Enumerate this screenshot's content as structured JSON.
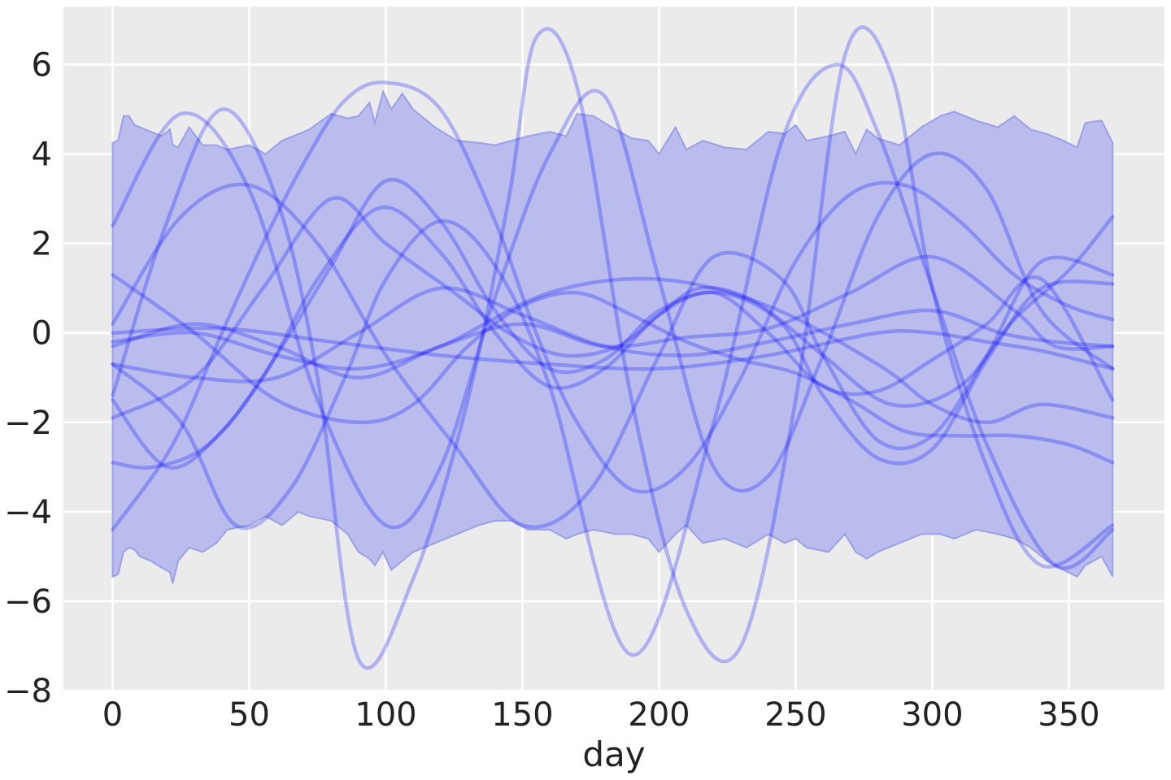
{
  "chart_data": {
    "type": "line",
    "title": "",
    "xlabel": "day",
    "ylabel": "",
    "xlim": [
      -18,
      385
    ],
    "ylim": [
      -8,
      7.3
    ],
    "xticks": [
      0,
      50,
      100,
      150,
      200,
      250,
      300,
      350
    ],
    "xtick_labels": [
      "0",
      "50",
      "100",
      "150",
      "200",
      "250",
      "300",
      "350"
    ],
    "yticks": [
      6,
      4,
      2,
      0,
      -2,
      -4,
      -6,
      -8
    ],
    "ytick_labels": [
      "6",
      "4",
      "2",
      "0",
      "−2",
      "−4",
      "−6",
      "−8"
    ],
    "grid": true,
    "background_color": "#ebebeb",
    "line_color": "#0000ff",
    "band": {
      "name": "",
      "color": "#b9bcec",
      "x": [
        0,
        2,
        4,
        6,
        8,
        10,
        14,
        18,
        21,
        22,
        24,
        28,
        33,
        38,
        42,
        50,
        56,
        62,
        68,
        72,
        80,
        86,
        90,
        94,
        96,
        99,
        102,
        106,
        110,
        118,
        126,
        134,
        140,
        146,
        152,
        160,
        166,
        170,
        176,
        184,
        190,
        196,
        200,
        206,
        210,
        216,
        224,
        232,
        240,
        246,
        250,
        254,
        262,
        268,
        272,
        276,
        280,
        288,
        296,
        303,
        308,
        316,
        324,
        330,
        336,
        342,
        348,
        353,
        356,
        362,
        366
      ],
      "upper": [
        4.25,
        4.3,
        4.85,
        4.85,
        4.65,
        4.6,
        4.5,
        4.4,
        4.55,
        4.2,
        4.15,
        4.6,
        4.2,
        4.2,
        4.1,
        4.2,
        4.0,
        4.3,
        4.45,
        4.55,
        4.9,
        4.8,
        4.85,
        5.15,
        4.7,
        5.4,
        5.0,
        5.35,
        5.0,
        4.6,
        4.3,
        4.25,
        4.2,
        4.3,
        4.4,
        4.5,
        4.4,
        4.9,
        4.85,
        4.55,
        4.35,
        4.3,
        4.0,
        4.6,
        4.1,
        4.3,
        4.15,
        4.1,
        4.5,
        4.45,
        4.65,
        4.3,
        4.4,
        4.5,
        4.0,
        4.55,
        4.35,
        4.2,
        4.6,
        4.85,
        4.95,
        4.75,
        4.6,
        4.85,
        4.55,
        4.45,
        4.3,
        4.15,
        4.7,
        4.75,
        4.25
      ],
      "lower": [
        -5.45,
        -5.4,
        -4.9,
        -4.8,
        -4.85,
        -5.0,
        -5.1,
        -5.25,
        -5.35,
        -5.6,
        -5.1,
        -4.8,
        -4.9,
        -4.7,
        -4.4,
        -4.3,
        -4.1,
        -4.3,
        -4.0,
        -4.1,
        -4.2,
        -4.5,
        -4.9,
        -5.05,
        -5.2,
        -4.9,
        -5.3,
        -5.1,
        -4.9,
        -4.7,
        -4.5,
        -4.3,
        -4.2,
        -4.2,
        -4.4,
        -4.4,
        -4.6,
        -4.5,
        -4.4,
        -4.5,
        -4.5,
        -4.6,
        -4.9,
        -4.5,
        -4.3,
        -4.7,
        -4.6,
        -4.8,
        -4.5,
        -4.7,
        -4.6,
        -4.8,
        -4.9,
        -4.5,
        -4.9,
        -5.05,
        -4.9,
        -4.7,
        -4.5,
        -4.5,
        -4.6,
        -4.4,
        -4.5,
        -4.6,
        -4.8,
        -5.1,
        -5.3,
        -5.45,
        -5.2,
        -5.0,
        -5.45
      ]
    },
    "series": [
      {
        "x": [
          0,
          25,
          50,
          75,
          100,
          120,
          140,
          160,
          180,
          200,
          220,
          240,
          260,
          280,
          300,
          320,
          340,
          366
        ],
        "values": [
          2.4,
          4.9,
          3.2,
          -1.5,
          -4.3,
          -3.0,
          0.8,
          4.0,
          5.3,
          1.2,
          -3.0,
          -3.2,
          -0.5,
          2.6,
          4.0,
          3.2,
          0.5,
          -0.8
        ]
      },
      {
        "x": [
          0,
          22,
          40,
          55,
          70,
          85,
          100,
          120,
          140,
          155,
          170,
          190,
          210,
          230,
          250,
          270,
          290,
          310,
          330,
          350,
          366
        ],
        "values": [
          -4.4,
          -2.5,
          0.0,
          2.0,
          3.8,
          5.2,
          5.6,
          5.0,
          2.5,
          0.0,
          -2.0,
          -3.5,
          -3.0,
          -1.0,
          1.6,
          3.1,
          3.3,
          2.5,
          1.3,
          0.6,
          0.3
        ]
      },
      {
        "x": [
          0,
          20,
          40,
          60,
          75,
          90,
          110,
          130,
          145,
          155,
          170,
          190,
          210,
          230,
          250,
          268,
          285,
          300,
          320,
          340,
          366
        ],
        "values": [
          -1.4,
          2.5,
          5.0,
          3.0,
          -1.0,
          -7.3,
          -5.5,
          -1.5,
          3.0,
          6.6,
          5.5,
          -1.5,
          -6.2,
          -7.0,
          -1.5,
          6.2,
          5.8,
          1.0,
          -3.0,
          -5.2,
          -4.3
        ]
      },
      {
        "x": [
          0,
          25,
          45,
          65,
          85,
          100,
          120,
          140,
          160,
          190,
          220,
          245,
          265,
          280,
          300,
          320,
          345,
          366
        ],
        "values": [
          -0.7,
          -2.0,
          -4.3,
          -3.5,
          -1.0,
          1.2,
          2.5,
          1.5,
          -1.2,
          -7.2,
          -2.0,
          4.3,
          6.0,
          4.5,
          1.0,
          -2.5,
          -5.2,
          -4.4
        ]
      },
      {
        "x": [
          0,
          25,
          50,
          75,
          100,
          125,
          150,
          175,
          200,
          220,
          245,
          260,
          280,
          300,
          320,
          340,
          366
        ],
        "values": [
          0.2,
          2.6,
          3.3,
          2.0,
          -0.5,
          -2.5,
          -4.3,
          -3.5,
          -0.5,
          1.7,
          1.2,
          -0.5,
          -2.4,
          -2.3,
          -0.5,
          1.6,
          1.3
        ]
      },
      {
        "x": [
          0,
          30,
          60,
          90,
          110,
          130,
          150,
          170,
          190,
          210,
          230,
          250,
          270,
          290,
          310,
          330,
          350,
          366
        ],
        "values": [
          1.3,
          0.0,
          -1.5,
          -2.0,
          -1.6,
          -0.3,
          0.6,
          0.9,
          0.4,
          -0.2,
          -0.6,
          -0.9,
          -1.5,
          -2.2,
          -2.3,
          -2.3,
          -2.5,
          -2.9
        ]
      },
      {
        "x": [
          0,
          20,
          40,
          60,
          80,
          100,
          120,
          140,
          160,
          180,
          200,
          222,
          245,
          260,
          280,
          300,
          320,
          340,
          366
        ],
        "values": [
          -1.5,
          -3.0,
          -2.2,
          -0.5,
          1.5,
          3.4,
          2.5,
          0.5,
          -0.8,
          -0.6,
          0.5,
          0.9,
          0.2,
          -1.4,
          -2.8,
          -2.6,
          -0.6,
          1.0,
          1.1
        ]
      },
      {
        "x": [
          0,
          15,
          35,
          55,
          75,
          98,
          120,
          140,
          160,
          180,
          200,
          220,
          240,
          260,
          280,
          300,
          320,
          340,
          366
        ],
        "values": [
          -2.9,
          -3.0,
          -2.5,
          -1.0,
          1.2,
          2.8,
          1.8,
          0.0,
          -1.2,
          -0.8,
          0.4,
          0.9,
          0.0,
          -1.2,
          -1.3,
          -0.6,
          0.2,
          1.2,
          -1.5
        ]
      },
      {
        "x": [
          0,
          30,
          60,
          90,
          120,
          150,
          180,
          210,
          240,
          270,
          300,
          330,
          345,
          366
        ],
        "values": [
          -0.3,
          0.2,
          -0.3,
          -1.0,
          -0.3,
          0.2,
          -0.3,
          -0.1,
          0.1,
          0.9,
          1.7,
          0.5,
          -0.3,
          -0.3
        ]
      },
      {
        "x": [
          0,
          30,
          60,
          90,
          120,
          150,
          180,
          210,
          240,
          270,
          300,
          325,
          345,
          366
        ],
        "values": [
          -0.7,
          -1.0,
          -1.0,
          0.0,
          1.0,
          0.4,
          -0.3,
          -0.5,
          -0.2,
          0.2,
          0.5,
          0.0,
          -0.2,
          -0.3
        ]
      },
      {
        "x": [
          0,
          30,
          55,
          80,
          100,
          125,
          145,
          165,
          185,
          200,
          215,
          235,
          260,
          285,
          310,
          330,
          350,
          366
        ],
        "values": [
          -1.9,
          -1.0,
          1.0,
          3.0,
          2.0,
          0.9,
          0.0,
          -0.5,
          -0.3,
          0.4,
          1.0,
          0.7,
          -0.5,
          -1.6,
          -1.2,
          0.3,
          1.4,
          2.6
        ]
      },
      {
        "x": [
          0,
          30,
          60,
          90,
          120,
          160,
          200,
          240,
          280,
          300,
          320,
          340,
          366
        ],
        "values": [
          -0.2,
          0.0,
          -0.5,
          -0.8,
          -0.3,
          0.9,
          1.2,
          0.6,
          -0.7,
          -1.6,
          -2.0,
          -1.6,
          -1.9
        ]
      },
      {
        "x": [
          0,
          40,
          80,
          120,
          160,
          200,
          240,
          280,
          300,
          320,
          340,
          366
        ],
        "values": [
          0.0,
          0.1,
          -0.2,
          -0.5,
          -0.7,
          -0.8,
          -0.5,
          0.0,
          0.0,
          -0.2,
          -0.4,
          -0.8
        ]
      }
    ]
  }
}
